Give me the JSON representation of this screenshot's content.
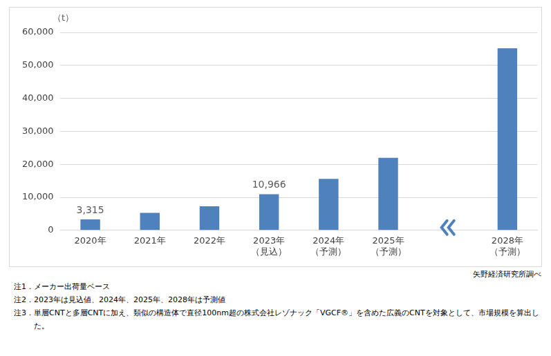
{
  "chart_data": {
    "type": "bar",
    "ylabel": "（t）",
    "categories": [
      "2020年",
      "2021年",
      "2022年",
      "2023年\n（見込）",
      "2024年\n（予測）",
      "2025年\n（予測）",
      null,
      "2028年\n（予測）"
    ],
    "values": [
      3315,
      5300,
      7300,
      10966,
      15600,
      22000,
      null,
      55200
    ],
    "value_labels": [
      "3,315",
      null,
      null,
      "10,966",
      null,
      null,
      null,
      null
    ],
    "data_labels": true,
    "color": "#4f81bd",
    "ylim": [
      0,
      60000
    ],
    "yticks": [
      0,
      {
        "value": 10000,
        "label": "10,000"
      },
      {
        "value": 20000,
        "label": "20,000"
      },
      {
        "value": 30000,
        "label": "30,000"
      },
      {
        "value": 40000,
        "label": "40,000"
      },
      {
        "value": 50000,
        "label": "50,000"
      },
      {
        "value": 60000,
        "label": "60,000"
      }
    ],
    "grid": true,
    "source": "矢野経済研究所調べ",
    "notes": [
      "注1．メーカー出荷量ベース",
      "注2．2023年は見込値、2024年、2025年、2028年は予測値",
      "注3．単層CNTと多層CNTに加え、類似の構造体で直径100nm超の株式会社レゾナック「VGCF®」を含めた広義のCNTを対象として、市場規模を算出した。"
    ]
  }
}
